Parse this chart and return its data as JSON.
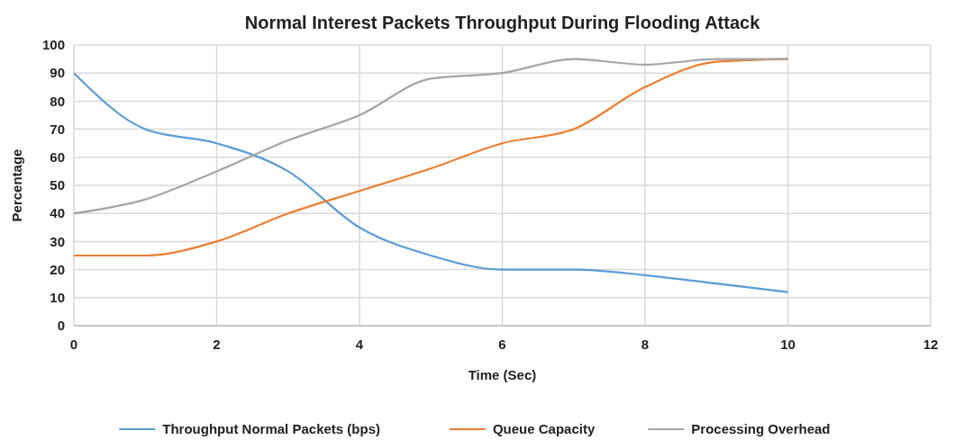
{
  "chart_data": {
    "type": "line",
    "title": "Normal Interest Packets Throughput During Flooding Attack",
    "xlabel": "Time (Sec)",
    "ylabel": "Percentage",
    "x": [
      0,
      1,
      2,
      3,
      4,
      5,
      6,
      7,
      8,
      9,
      10
    ],
    "series": [
      {
        "name": "Throughput Normal Packets (bps)",
        "color": "#5b9bd5",
        "values": [
          90,
          70,
          65,
          55,
          35,
          25,
          20,
          20,
          18,
          15,
          12
        ]
      },
      {
        "name": "Queue Capacity",
        "color": "#ed7d31",
        "values": [
          25,
          25,
          30,
          40,
          48,
          56,
          65,
          70,
          85,
          94,
          95
        ]
      },
      {
        "name": "Processing Overhead",
        "color": "#a5a5a5",
        "values": [
          40,
          45,
          55,
          66,
          75,
          88,
          90,
          95,
          93,
          95,
          95
        ]
      }
    ],
    "xlim": [
      0,
      12
    ],
    "xticks": [
      0,
      2,
      4,
      6,
      8,
      10,
      12
    ],
    "ylim": [
      0,
      100
    ],
    "yticks": [
      0,
      10,
      20,
      30,
      40,
      50,
      60,
      70,
      80,
      90,
      100
    ],
    "grid": true,
    "legend": "bottom",
    "marker": "none",
    "line_style": "solid"
  }
}
